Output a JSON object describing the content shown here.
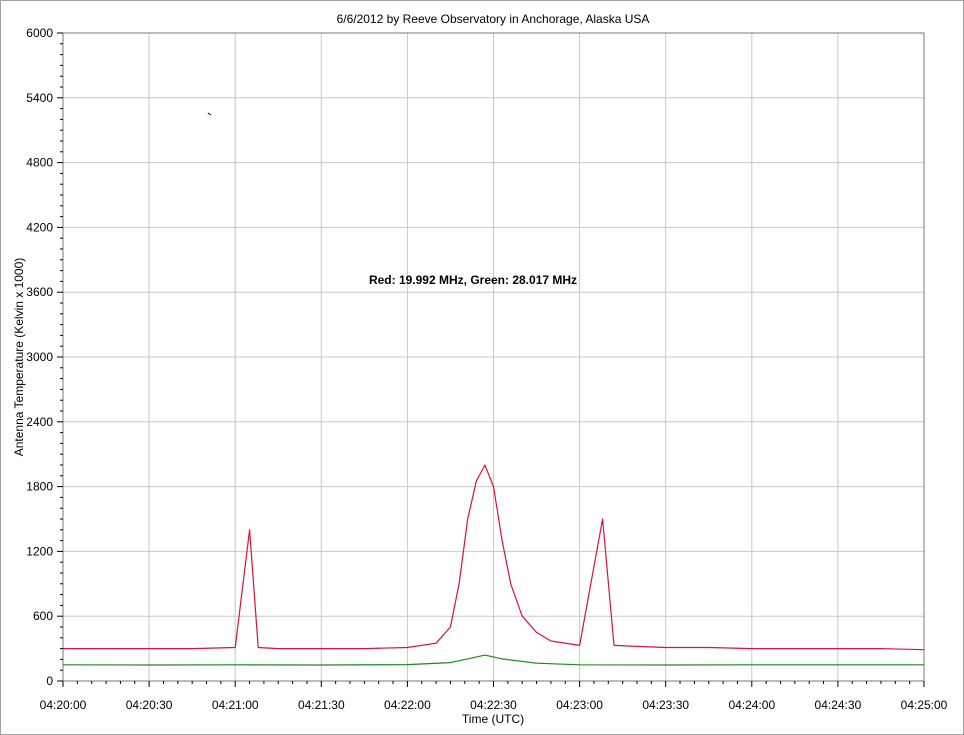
{
  "chart_data": {
    "type": "line",
    "title": "6/6/2012  by  Reeve Observatory  in  Anchorage, Alaska  USA",
    "xlabel": "Time (UTC)",
    "ylabel": "Antenna Temperature (Kelvin x 1000)",
    "annotation": "Red: 19.992 MHz, Green: 28.017 MHz",
    "xlim": [
      "04:20:00",
      "04:25:00"
    ],
    "ylim": [
      0,
      6000
    ],
    "x_ticks": [
      "04:20:00",
      "04:20:30",
      "04:21:00",
      "04:21:30",
      "04:22:00",
      "04:22:30",
      "04:23:00",
      "04:23:30",
      "04:24:00",
      "04:24:30",
      "04:25:00"
    ],
    "y_ticks": [
      0,
      600,
      1200,
      1800,
      2400,
      3000,
      3600,
      4200,
      4800,
      5400,
      6000
    ],
    "grid": true,
    "colors": {
      "red": "#dd1133",
      "green": "#1a8a1a",
      "grid": "#c8c8c8"
    },
    "series": [
      {
        "color": "red",
        "x": [
          "04:20:00",
          "04:20:15",
          "04:20:30",
          "04:20:45",
          "04:21:00",
          "04:21:05",
          "04:21:08",
          "04:21:15",
          "04:21:30",
          "04:21:45",
          "04:22:00",
          "04:22:10",
          "04:22:15",
          "04:22:18",
          "04:22:21",
          "04:22:24",
          "04:22:27",
          "04:22:30",
          "04:22:33",
          "04:22:36",
          "04:22:40",
          "04:22:45",
          "04:22:50",
          "04:23:00",
          "04:23:08",
          "04:23:12",
          "04:23:20",
          "04:23:30",
          "04:23:45",
          "04:24:00",
          "04:24:15",
          "04:24:30",
          "04:24:45",
          "04:25:00"
        ],
        "values": [
          300,
          300,
          300,
          300,
          310,
          1400,
          310,
          300,
          300,
          300,
          310,
          350,
          500,
          900,
          1500,
          1850,
          2000,
          1800,
          1300,
          900,
          600,
          450,
          370,
          330,
          1500,
          330,
          320,
          310,
          310,
          300,
          300,
          300,
          300,
          290
        ]
      },
      {
        "color": "green",
        "x": [
          "04:20:00",
          "04:20:30",
          "04:21:00",
          "04:21:30",
          "04:22:00",
          "04:22:15",
          "04:22:22",
          "04:22:27",
          "04:22:33",
          "04:22:45",
          "04:23:00",
          "04:23:30",
          "04:24:00",
          "04:24:30",
          "04:25:00"
        ],
        "values": [
          150,
          148,
          150,
          148,
          152,
          170,
          210,
          240,
          205,
          165,
          150,
          148,
          150,
          150,
          150
        ]
      }
    ],
    "markers": [
      {
        "x": "04:20:51",
        "y": 5250
      }
    ]
  }
}
